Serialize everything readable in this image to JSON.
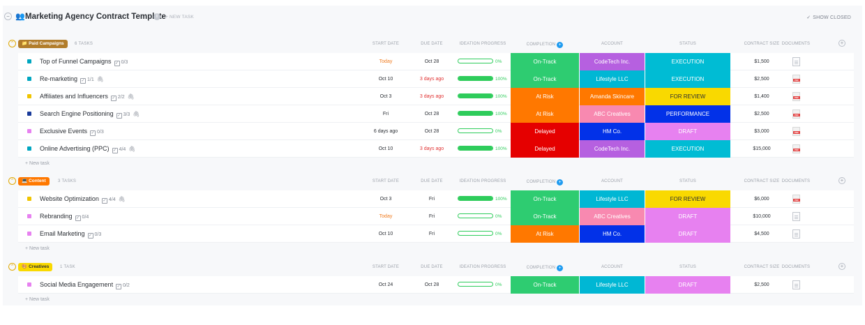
{
  "header": {
    "collapse_glyph": "−",
    "icon": "users-icon",
    "title": "Marketing Agency Contract Template",
    "info_glyph": "i",
    "new_task": "+ NEW TASK",
    "show_closed": "SHOW CLOSED",
    "show_closed_glyph": "✓"
  },
  "columns": {
    "start_date": "START DATE",
    "due_date": "DUE DATE",
    "ideation_progress": "IDEATION PROGRESS",
    "completion": "COMPLETION",
    "account": "ACCOUNT",
    "status": "STATUS",
    "contract_size": "CONTRACT SIZE",
    "documents": "DOCUMENTS"
  },
  "colors": {
    "on_track": "#2ecc71",
    "at_risk": "#ff7800",
    "delayed": "#e50000",
    "codetech": "#b660e0",
    "lifestyle": "#00b7d4",
    "amanda": "#ff7800",
    "abc": "#f889b0",
    "hm": "#0231e8",
    "execution": "#00bcd4",
    "for_review": "#f9d900",
    "performance": "#0231e8",
    "draft": "#e781f0"
  },
  "groups": [
    {
      "name": "Paid Campaigns",
      "pill_color": "#b27d2b",
      "pill_icon": "folder-icon",
      "count": "6 TASKS",
      "new_task": "+ New task",
      "tasks": [
        {
          "name": "Top of Funnel Campaigns",
          "subtasks": "0/3",
          "attach": false,
          "square": "#00a6c0",
          "start": "Today",
          "start_style": "orange",
          "due": "Oct 28",
          "due_style": "",
          "progress": 0,
          "progress_label": "0%",
          "completion": "On-Track",
          "completion_color": "#2ecc71",
          "account": "CodeTech Inc.",
          "account_color": "#b660e0",
          "status": "EXECUTION",
          "status_color": "#00bcd4",
          "status_text": "#ffffff",
          "size": "$1,500",
          "doc": "empty"
        },
        {
          "name": "Re-marketing",
          "subtasks": "1/1",
          "attach": true,
          "square": "#00a6c0",
          "start": "Oct 10",
          "start_style": "",
          "due": "3 days ago",
          "due_style": "red",
          "progress": 100,
          "progress_label": "100%",
          "completion": "On-Track",
          "completion_color": "#2ecc71",
          "account": "Lifestyle LLC",
          "account_color": "#00b7d4",
          "status": "EXECUTION",
          "status_color": "#00bcd4",
          "status_text": "#ffffff",
          "size": "$2,500",
          "doc": "pdf"
        },
        {
          "name": "Affiliates and Influencers",
          "subtasks": "2/2",
          "attach": true,
          "square": "#f0c400",
          "start": "Oct 3",
          "start_style": "",
          "due": "3 days ago",
          "due_style": "red",
          "progress": 100,
          "progress_label": "100%",
          "completion": "At Risk",
          "completion_color": "#ff7800",
          "account": "Amanda Skincare",
          "account_color": "#ff7800",
          "status": "FOR REVIEW",
          "status_color": "#f9d900",
          "status_text": "#2a2e34",
          "size": "$1,400",
          "doc": "pdf"
        },
        {
          "name": "Search Engine Positioning",
          "subtasks": "3/3",
          "attach": true,
          "square": "#1a3b9a",
          "start": "Fri",
          "start_style": "",
          "due": "Oct 28",
          "due_style": "",
          "progress": 100,
          "progress_label": "100%",
          "completion": "At Risk",
          "completion_color": "#ff7800",
          "account": "ABC Creatives",
          "account_color": "#f889b0",
          "status": "PERFORMANCE",
          "status_color": "#0231e8",
          "status_text": "#ffffff",
          "size": "$2,500",
          "doc": "pdf"
        },
        {
          "name": "Exclusive Events",
          "subtasks": "0/3",
          "attach": false,
          "square": "#e781f0",
          "start": "6 days ago",
          "start_style": "",
          "due": "Oct 28",
          "due_style": "",
          "progress": 0,
          "progress_label": "0%",
          "completion": "Delayed",
          "completion_color": "#e50000",
          "account": "HM Co.",
          "account_color": "#0231e8",
          "status": "DRAFT",
          "status_color": "#e781f0",
          "status_text": "#ffffff",
          "size": "$3,000",
          "doc": "pdf"
        },
        {
          "name": "Online Advertising (PPC)",
          "subtasks": "4/4",
          "attach": true,
          "square": "#00a6c0",
          "start": "Oct 10",
          "start_style": "",
          "due": "3 days ago",
          "due_style": "red",
          "progress": 100,
          "progress_label": "100%",
          "completion": "Delayed",
          "completion_color": "#e50000",
          "account": "CodeTech Inc.",
          "account_color": "#b660e0",
          "status": "EXECUTION",
          "status_color": "#00bcd4",
          "status_text": "#ffffff",
          "size": "$15,000",
          "doc": "pdf"
        }
      ]
    },
    {
      "name": "Content",
      "pill_color": "#ff7800",
      "pill_icon": "laptop-icon",
      "count": "3 TASKS",
      "new_task": "+ New task",
      "tasks": [
        {
          "name": "Website Optimization",
          "subtasks": "4/4",
          "attach": true,
          "square": "#f0c400",
          "start": "Oct 3",
          "start_style": "",
          "due": "Fri",
          "due_style": "",
          "progress": 100,
          "progress_label": "100%",
          "completion": "On-Track",
          "completion_color": "#2ecc71",
          "account": "Lifestyle LLC",
          "account_color": "#00b7d4",
          "status": "FOR REVIEW",
          "status_color": "#f9d900",
          "status_text": "#2a2e34",
          "size": "$6,000",
          "doc": "pdf"
        },
        {
          "name": "Rebranding",
          "subtasks": "0/4",
          "attach": false,
          "square": "#e781f0",
          "start": "Today",
          "start_style": "orange",
          "due": "Fri",
          "due_style": "",
          "progress": 0,
          "progress_label": "0%",
          "completion": "On-Track",
          "completion_color": "#2ecc71",
          "account": "ABC Creatives",
          "account_color": "#f889b0",
          "status": "DRAFT",
          "status_color": "#e781f0",
          "status_text": "#ffffff",
          "size": "$10,000",
          "doc": "empty"
        },
        {
          "name": "Email Marketing",
          "subtasks": "0/3",
          "attach": false,
          "square": "#e781f0",
          "start": "Oct 10",
          "start_style": "",
          "due": "Fri",
          "due_style": "",
          "progress": 0,
          "progress_label": "0%",
          "completion": "At Risk",
          "completion_color": "#ff7800",
          "account": "HM Co.",
          "account_color": "#0231e8",
          "status": "DRAFT",
          "status_color": "#e781f0",
          "status_text": "#ffffff",
          "size": "$4,500",
          "doc": "empty"
        }
      ]
    },
    {
      "name": "Creatives",
      "pill_color": "#f9d900",
      "pill_icon": "palette-icon",
      "count": "1 TASK",
      "new_task": "+ New task",
      "tasks": [
        {
          "name": "Social Media Engagement",
          "subtasks": "0/2",
          "attach": false,
          "square": "#e781f0",
          "start": "Oct 24",
          "start_style": "",
          "due": "Oct 28",
          "due_style": "",
          "progress": 0,
          "progress_label": "0%",
          "completion": "On-Track",
          "completion_color": "#2ecc71",
          "account": "Lifestyle LLC",
          "account_color": "#00b7d4",
          "status": "DRAFT",
          "status_color": "#e781f0",
          "status_text": "#ffffff",
          "size": "$2,500",
          "doc": "empty"
        }
      ]
    }
  ]
}
